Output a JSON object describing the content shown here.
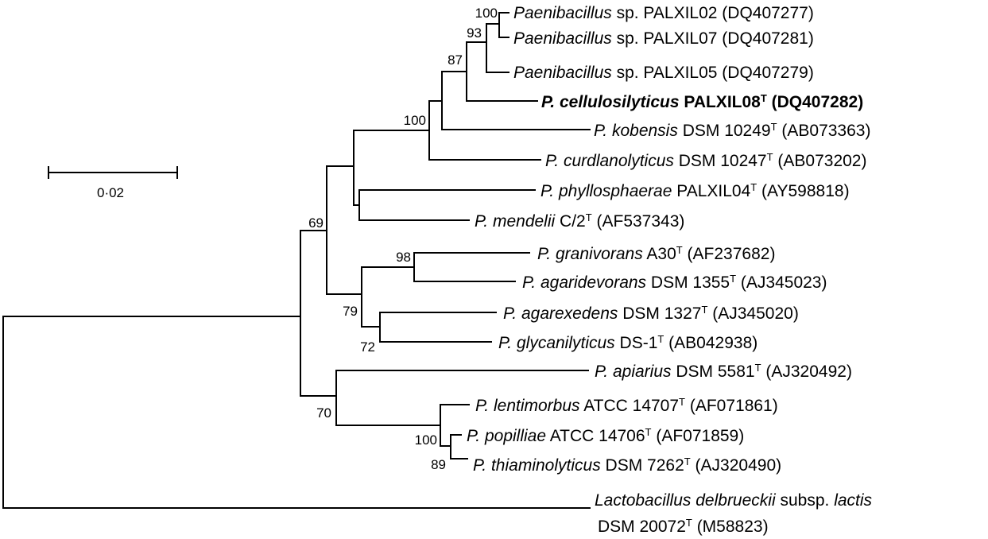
{
  "figure": {
    "scale_bar": {
      "label": "0·02"
    },
    "taxa": {
      "t1": {
        "italic": "Paenibacillus",
        "rest": " sp. PALXIL02 (DQ407277)"
      },
      "t2": {
        "italic": "Paenibacillus",
        "rest": " sp. PALXIL07 (DQ407281)"
      },
      "t3": {
        "italic": "Paenibacillus",
        "rest": " sp. PALXIL05 (DQ407279)"
      },
      "t4": {
        "italic": "P. cellulosilyticus",
        "rest": " PALXIL08",
        "sup": "T",
        "tail": " (DQ407282)"
      },
      "t5": {
        "italic": "P. kobensis",
        "rest": " DSM 10249",
        "sup": "T",
        "tail": " (AB073363)"
      },
      "t6": {
        "italic": "P. curdlanolyticus",
        "rest": " DSM 10247",
        "sup": "T",
        "tail": " (AB073202)"
      },
      "t7": {
        "italic": "P. phyllosphaerae",
        "rest": " PALXIL04",
        "sup": "T",
        "tail": " (AY598818)"
      },
      "t8": {
        "italic": "P. mendelii",
        "rest": " C/2",
        "sup": "T",
        "tail": " (AF537343)"
      },
      "t9": {
        "italic": "P. granivorans",
        "rest": " A30",
        "sup": "T",
        "tail": " (AF237682)"
      },
      "t10": {
        "italic": "P. agaridevorans",
        "rest": " DSM 1355",
        "sup": "T",
        "tail": " (AJ345023)"
      },
      "t11": {
        "italic": "P. agarexedens",
        "rest": " DSM 1327",
        "sup": "T",
        "tail": " (AJ345020)"
      },
      "t12": {
        "italic": "P. glycanilyticus",
        "rest": " DS-1",
        "sup": "T",
        "tail": " (AB042938)"
      },
      "t13": {
        "italic": "P. apiarius",
        "rest": " DSM 5581",
        "sup": "T",
        "tail": " (AJ320492)"
      },
      "t14": {
        "italic": "P. lentimorbus",
        "rest": " ATCC 14707",
        "sup": "T",
        "tail": " (AF071861)"
      },
      "t15": {
        "italic": "P. popilliae",
        "rest": " ATCC 14706",
        "sup": "T",
        "tail": " (AF071859)"
      },
      "t16": {
        "italic": "P. thiaminolyticus",
        "rest": " DSM 7262",
        "sup": "T",
        "tail": " (AJ320490)"
      },
      "t17": {
        "italic": "Lactobacillus delbrueckii",
        "rest": " subsp. ",
        "italic2": "lactis",
        "line2": "DSM 20072",
        "sup": "T",
        "tail": " (M58823)"
      }
    },
    "support": {
      "b100_pal": "100",
      "b93": "93",
      "b87": "87",
      "b100_cel": "100",
      "b69": "69",
      "b98": "98",
      "b79": "79",
      "b72": "72",
      "b70": "70",
      "b100_pop": "100",
      "b89": "89"
    }
  }
}
